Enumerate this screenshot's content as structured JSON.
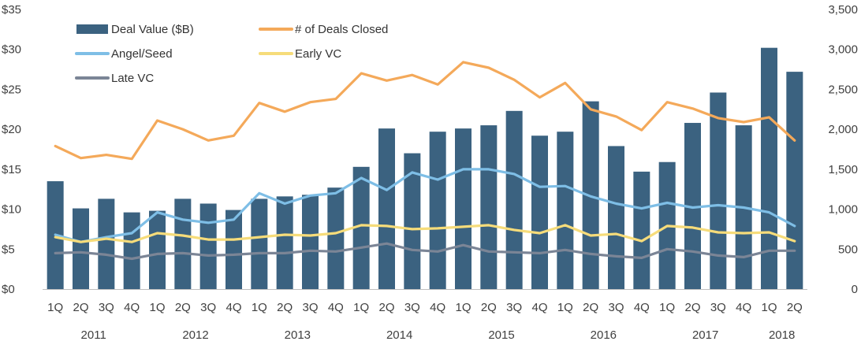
{
  "chart_data": {
    "type": "bar",
    "quarters": [
      "1Q",
      "2Q",
      "3Q",
      "4Q",
      "1Q",
      "2Q",
      "3Q",
      "4Q",
      "1Q",
      "2Q",
      "3Q",
      "4Q",
      "1Q",
      "2Q",
      "3Q",
      "4Q",
      "1Q",
      "2Q",
      "3Q",
      "4Q",
      "1Q",
      "2Q",
      "3Q",
      "4Q",
      "1Q",
      "2Q",
      "3Q",
      "4Q",
      "1Q",
      "2Q"
    ],
    "years": [
      {
        "label": "2011",
        "quarters": 4
      },
      {
        "label": "2012",
        "quarters": 4
      },
      {
        "label": "2013",
        "quarters": 4
      },
      {
        "label": "2014",
        "quarters": 4
      },
      {
        "label": "2015",
        "quarters": 4
      },
      {
        "label": "2016",
        "quarters": 4
      },
      {
        "label": "2017",
        "quarters": 4
      },
      {
        "label": "2018",
        "quarters": 2
      }
    ],
    "left_axis": {
      "ylim": [
        0,
        35
      ],
      "ticks": [
        0,
        5,
        10,
        15,
        20,
        25,
        30,
        35
      ],
      "tick_labels": [
        "$0",
        "$5",
        "$10",
        "$15",
        "$20",
        "$25",
        "$30",
        "$35"
      ]
    },
    "right_axis": {
      "ylim": [
        0,
        3500
      ],
      "ticks": [
        0,
        500,
        1000,
        1500,
        2000,
        2500,
        3000,
        3500
      ],
      "tick_labels": [
        "0",
        "500",
        "1,000",
        "1,500",
        "2,000",
        "2,500",
        "3,000",
        "3,500"
      ]
    },
    "legend_position": "top-left",
    "series": [
      {
        "name": "Deal Value ($B)",
        "kind": "bar",
        "axis": "left",
        "color": "#3b6280",
        "values": [
          13.5,
          10.1,
          11.3,
          9.6,
          9.8,
          11.3,
          10.7,
          9.9,
          11.3,
          11.6,
          11.8,
          12.7,
          15.3,
          20.1,
          17.0,
          19.7,
          20.1,
          20.5,
          22.3,
          19.2,
          19.7,
          23.5,
          17.9,
          14.7,
          15.9,
          20.8,
          24.6,
          20.5,
          30.2,
          27.2
        ]
      },
      {
        "name": "# of Deals Closed",
        "kind": "line",
        "axis": "right",
        "color": "#f4a95a",
        "values": [
          1790,
          1640,
          1680,
          1630,
          2110,
          2000,
          1860,
          1920,
          2330,
          2220,
          2340,
          2380,
          2700,
          2610,
          2680,
          2560,
          2840,
          2770,
          2620,
          2400,
          2580,
          2250,
          2160,
          1990,
          2340,
          2260,
          2140,
          2090,
          2150,
          1860
        ]
      },
      {
        "name": "Angel/Seed",
        "kind": "line",
        "axis": "right",
        "color": "#7ebee6",
        "values": [
          680,
          590,
          650,
          700,
          960,
          870,
          830,
          870,
          1200,
          1070,
          1170,
          1200,
          1390,
          1240,
          1460,
          1370,
          1500,
          1500,
          1440,
          1280,
          1290,
          1160,
          1070,
          1010,
          1080,
          1020,
          1050,
          1020,
          960,
          790
        ]
      },
      {
        "name": "Early VC",
        "kind": "line",
        "axis": "right",
        "color": "#f6dc7a",
        "values": [
          650,
          590,
          630,
          590,
          700,
          670,
          620,
          620,
          650,
          680,
          670,
          700,
          800,
          790,
          750,
          760,
          780,
          800,
          740,
          700,
          800,
          670,
          690,
          600,
          790,
          770,
          710,
          700,
          710,
          600
        ]
      },
      {
        "name": "Late VC",
        "kind": "line",
        "axis": "right",
        "color": "#7b8596",
        "values": [
          450,
          460,
          430,
          380,
          440,
          450,
          420,
          430,
          450,
          450,
          480,
          470,
          520,
          570,
          490,
          470,
          550,
          470,
          460,
          450,
          490,
          440,
          410,
          390,
          500,
          470,
          420,
          400,
          480,
          480
        ]
      }
    ]
  }
}
